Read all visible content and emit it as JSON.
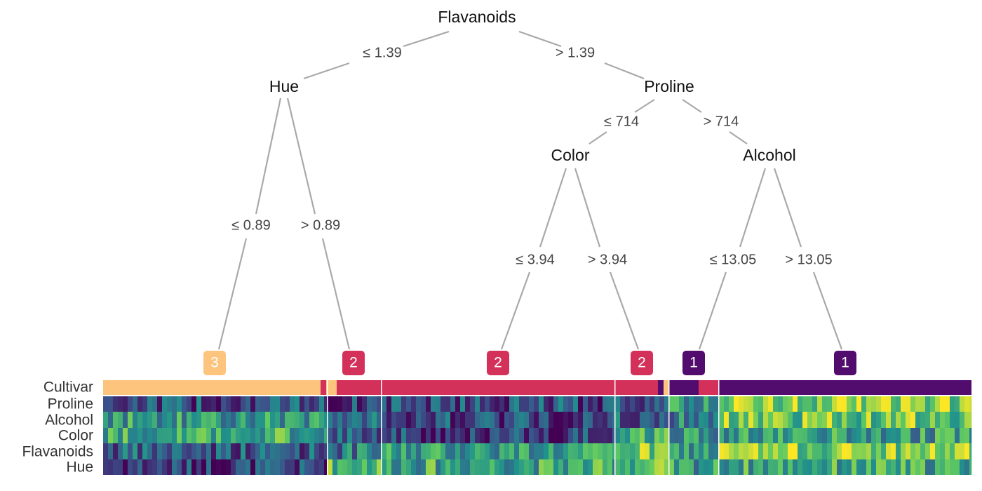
{
  "tree": {
    "nodes": {
      "root": {
        "label": "Flavanoids"
      },
      "hue": {
        "label": "Hue"
      },
      "proline": {
        "label": "Proline"
      },
      "color": {
        "label": "Color"
      },
      "alcohol": {
        "label": "Alcohol"
      }
    },
    "edges": {
      "root_left": "≤ 1.39",
      "root_right": "> 1.39",
      "hue_left": "≤ 0.89",
      "hue_right": "> 0.89",
      "proline_left": "≤ 714",
      "proline_right": "> 714",
      "color_left": "≤ 3.94",
      "color_right": "> 3.94",
      "alcohol_left": "≤ 13.05",
      "alcohol_right": "> 13.05"
    },
    "leaves": [
      {
        "label": "3",
        "color": "#FDC47D"
      },
      {
        "label": "2",
        "color": "#D3315A"
      },
      {
        "label": "2",
        "color": "#D3315A"
      },
      {
        "label": "2",
        "color": "#D3315A"
      },
      {
        "label": "1",
        "color": "#520C6E"
      },
      {
        "label": "1",
        "color": "#520C6E"
      }
    ]
  },
  "heatmap": {
    "rows": [
      "Cultivar",
      "Proline",
      "Alcohol",
      "Color",
      "Flavanoids",
      "Hue"
    ],
    "cultivar_colors": {
      "1": "#520C6E",
      "2": "#D3315A",
      "3": "#FDC47D"
    }
  }
}
